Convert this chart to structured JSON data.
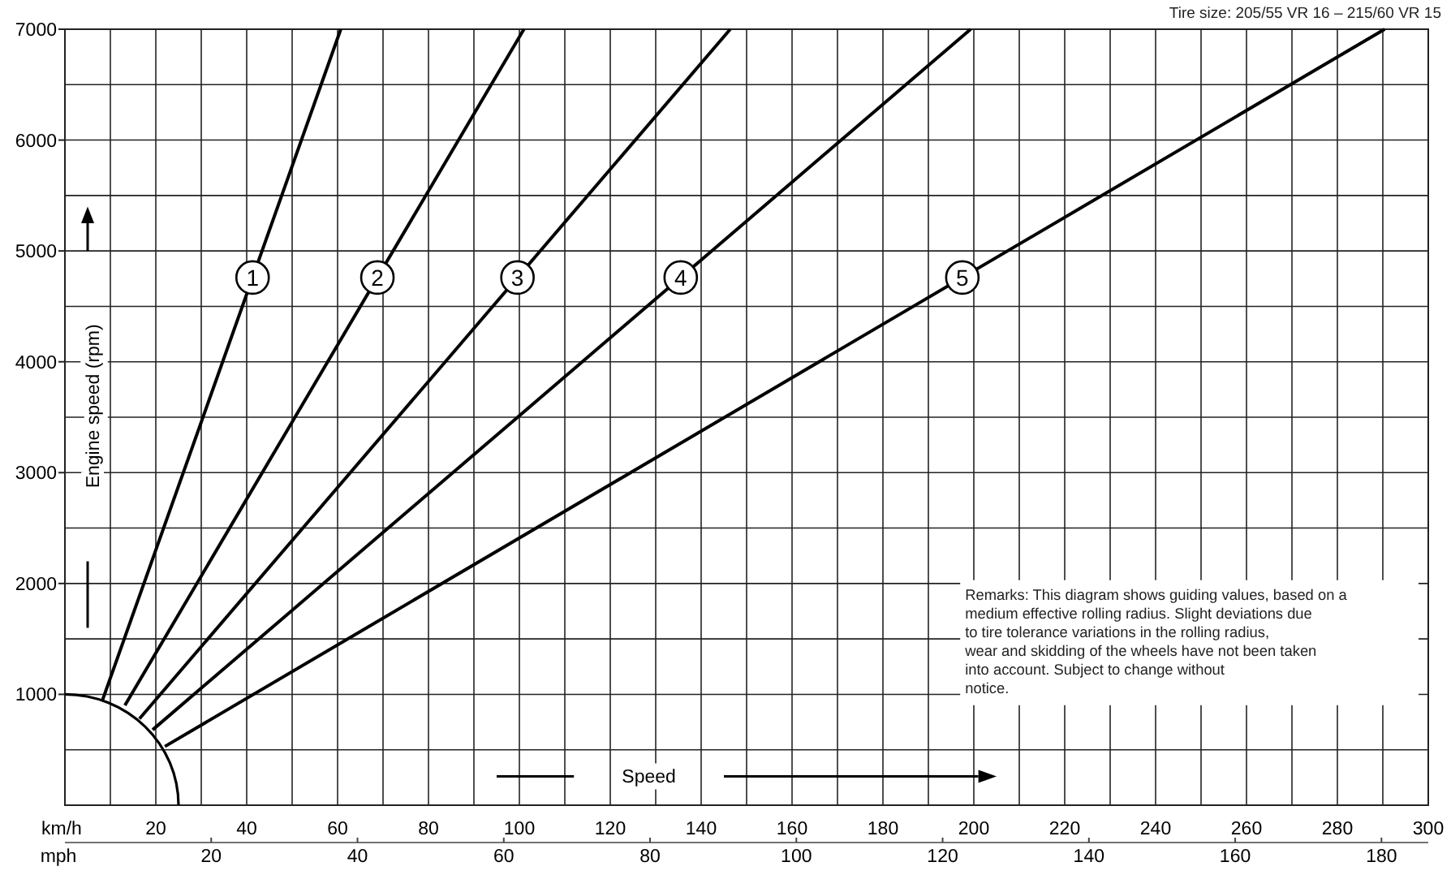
{
  "chart_data": {
    "type": "line",
    "xlabel": "km/h",
    "x2label": "mph",
    "ylabel": "Engine speed (rpm)",
    "xlim": [
      0,
      300
    ],
    "xticks": [
      20,
      40,
      60,
      80,
      100,
      120,
      140,
      160,
      180,
      200,
      220,
      240,
      260,
      280,
      300
    ],
    "x2lim": [
      0,
      186.4
    ],
    "x2ticks": [
      20,
      40,
      60,
      80,
      100,
      120,
      140,
      160,
      180
    ],
    "ylim": [
      0,
      7000
    ],
    "yticks": [
      1000,
      2000,
      3000,
      4000,
      5000,
      6000,
      7000
    ],
    "grid": true,
    "marker": "none",
    "line_style": "solid",
    "series": [
      {
        "name": "1",
        "color": "#000000",
        "x": [
          8.2,
          60.7
        ],
        "values": [
          940,
          7000
        ]
      },
      {
        "name": "2",
        "color": "#000000",
        "x": [
          13.2,
          101
        ],
        "values": [
          900,
          7000
        ]
      },
      {
        "name": "3",
        "color": "#000000",
        "x": [
          16.4,
          146.4
        ],
        "values": [
          780,
          7000
        ]
      },
      {
        "name": "4",
        "color": "#000000",
        "x": [
          19.3,
          199.3
        ],
        "values": [
          680,
          7000
        ]
      },
      {
        "name": "5",
        "color": "#000000",
        "x": [
          22,
          290.4
        ],
        "values": [
          530,
          7000
        ]
      }
    ],
    "annotations": [
      "Speed",
      "Tire size: 205/55 VR 16 – 215/60 VR 15",
      "Remarks: This diagram shows guiding values, based on a medium effective rolling radius. Slight deviations due to tire tolerance variations in the rolling radius, wear and skidding of the wheels have not been taken into account.          Subject to change without notice."
    ]
  }
}
